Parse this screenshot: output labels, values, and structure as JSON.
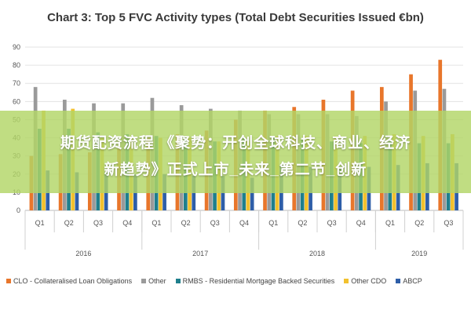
{
  "banner": {
    "line1": "期货配资流程 《聚势：开创全球科技、商业、经济",
    "line2": "新趋势》正式上市_未来_第二节_创新"
  },
  "chart_data": {
    "type": "bar",
    "title": "Chart 3: Top 5 FVC Activity types (Total Debt Securities Issued €bn)",
    "ylim": [
      0,
      90
    ],
    "yticks": [
      0,
      10,
      20,
      30,
      40,
      50,
      60,
      70,
      80,
      90
    ],
    "grid": true,
    "legend_position": "bottom",
    "categories": [
      "Q1",
      "Q2",
      "Q3",
      "Q4",
      "Q1",
      "Q2",
      "Q3",
      "Q4",
      "Q1",
      "Q2",
      "Q3",
      "Q4",
      "Q1",
      "Q2",
      "Q3"
    ],
    "groups": [
      {
        "label": "2016",
        "count": 4
      },
      {
        "label": "2017",
        "count": 4
      },
      {
        "label": "2018",
        "count": 4
      },
      {
        "label": "2019",
        "count": 3
      }
    ],
    "series": [
      {
        "name": "CLO - Collateralised Loan Obligations",
        "color": "#e8762b",
        "values": [
          30,
          31,
          32,
          34,
          40,
          42,
          44,
          50,
          55,
          57,
          61,
          66,
          68,
          75,
          83
        ]
      },
      {
        "name": "Other",
        "color": "#9a9a9a",
        "values": [
          68,
          61,
          59,
          59,
          62,
          58,
          56,
          55,
          53,
          53,
          53,
          52,
          60,
          66,
          67
        ]
      },
      {
        "name": "RMBS - Residential Mortgage Backed Securities",
        "color": "#1f7f8c",
        "values": [
          45,
          45,
          43,
          42,
          41,
          40,
          38,
          40,
          40,
          39,
          38,
          37,
          38,
          37,
          37
        ]
      },
      {
        "name": "Other CDO",
        "color": "#f2c12e",
        "values": [
          55,
          56,
          40,
          40,
          40,
          40,
          38,
          38,
          41,
          41,
          41,
          41,
          42,
          41,
          42
        ]
      },
      {
        "name": "ABCP",
        "color": "#2e5ea8",
        "values": [
          22,
          21,
          21,
          20,
          20,
          19,
          19,
          18,
          25,
          24,
          24,
          24,
          25,
          26,
          26
        ]
      }
    ]
  }
}
